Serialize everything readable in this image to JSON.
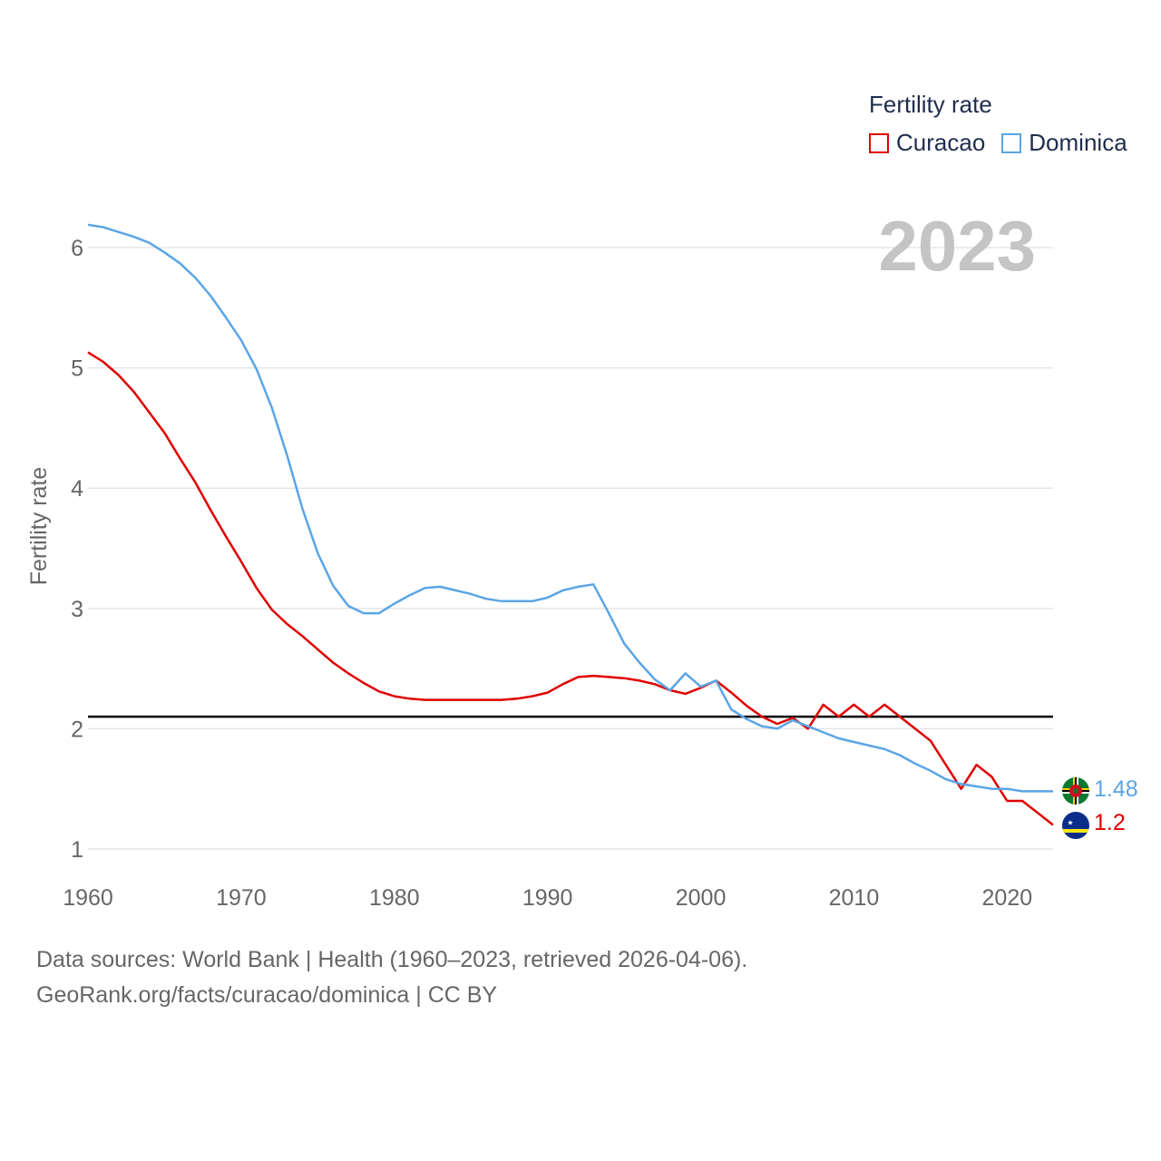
{
  "legend": {
    "title": "Fertility rate",
    "items": [
      {
        "label": "Curacao",
        "color": "#e00000"
      },
      {
        "label": "Dominica",
        "color": "#5aa5e6"
      }
    ]
  },
  "current_year": "2023",
  "sources": {
    "line1": "Data sources: World Bank | Health (1960–2023, retrieved 2026-04-06).",
    "line2": "GeoRank.org/facts/curacao/dominica | CC BY"
  },
  "end_labels": {
    "dominica": "1.48",
    "curacao": "1.2"
  },
  "flags": {
    "dominica": "dominica-flag-icon",
    "curacao": "curacao-flag-icon"
  },
  "chart_data": {
    "type": "line",
    "title": "",
    "xlabel": "",
    "ylabel": "Fertility rate",
    "xlim": [
      1960,
      2023
    ],
    "ylim": [
      0.8,
      6.2
    ],
    "x_ticks": [
      1960,
      1970,
      1980,
      1990,
      2000,
      2010,
      2020
    ],
    "y_ticks": [
      1,
      2,
      3,
      4,
      5,
      6
    ],
    "grid": true,
    "reference_line": {
      "y": 2.1,
      "color": "#000000"
    },
    "x": [
      1960,
      1961,
      1962,
      1963,
      1964,
      1965,
      1966,
      1967,
      1968,
      1969,
      1970,
      1971,
      1972,
      1973,
      1974,
      1975,
      1976,
      1977,
      1978,
      1979,
      1980,
      1981,
      1982,
      1983,
      1984,
      1985,
      1986,
      1987,
      1988,
      1989,
      1990,
      1991,
      1992,
      1993,
      1994,
      1995,
      1996,
      1997,
      1998,
      1999,
      2000,
      2001,
      2002,
      2003,
      2004,
      2005,
      2006,
      2007,
      2008,
      2009,
      2010,
      2011,
      2012,
      2013,
      2014,
      2015,
      2016,
      2017,
      2018,
      2019,
      2020,
      2021,
      2022,
      2023
    ],
    "series": [
      {
        "name": "Curacao",
        "color": "#e00000",
        "values": [
          5.13,
          5.05,
          4.94,
          4.8,
          4.63,
          4.46,
          4.25,
          4.05,
          3.82,
          3.6,
          3.39,
          3.17,
          2.99,
          2.87,
          2.77,
          2.66,
          2.55,
          2.46,
          2.38,
          2.31,
          2.27,
          2.25,
          2.24,
          2.24,
          2.24,
          2.24,
          2.24,
          2.24,
          2.25,
          2.27,
          2.3,
          2.37,
          2.43,
          2.44,
          2.43,
          2.42,
          2.4,
          2.37,
          2.32,
          2.29,
          2.34,
          2.4,
          2.3,
          2.19,
          2.1,
          2.04,
          2.09,
          2.0,
          2.2,
          2.1,
          2.2,
          2.1,
          2.2,
          2.1,
          2.0,
          1.9,
          1.7,
          1.5,
          1.7,
          1.6,
          1.4,
          1.4,
          1.3,
          1.2
        ]
      },
      {
        "name": "Dominica",
        "color": "#5aa5e6",
        "values": [
          6.19,
          6.17,
          6.13,
          6.09,
          6.04,
          5.96,
          5.87,
          5.75,
          5.6,
          5.42,
          5.23,
          4.99,
          4.67,
          4.27,
          3.83,
          3.46,
          3.19,
          3.02,
          2.96,
          2.96,
          3.04,
          3.11,
          3.17,
          3.18,
          3.15,
          3.12,
          3.08,
          3.06,
          3.06,
          3.06,
          3.09,
          3.15,
          3.18,
          3.2,
          2.96,
          2.71,
          2.55,
          2.41,
          2.32,
          2.46,
          2.35,
          2.4,
          2.16,
          2.08,
          2.02,
          2.0,
          2.07,
          2.02,
          1.97,
          1.92,
          1.89,
          1.86,
          1.83,
          1.78,
          1.71,
          1.65,
          1.58,
          1.54,
          1.52,
          1.5,
          1.5,
          1.48,
          1.48,
          1.48
        ]
      }
    ]
  }
}
